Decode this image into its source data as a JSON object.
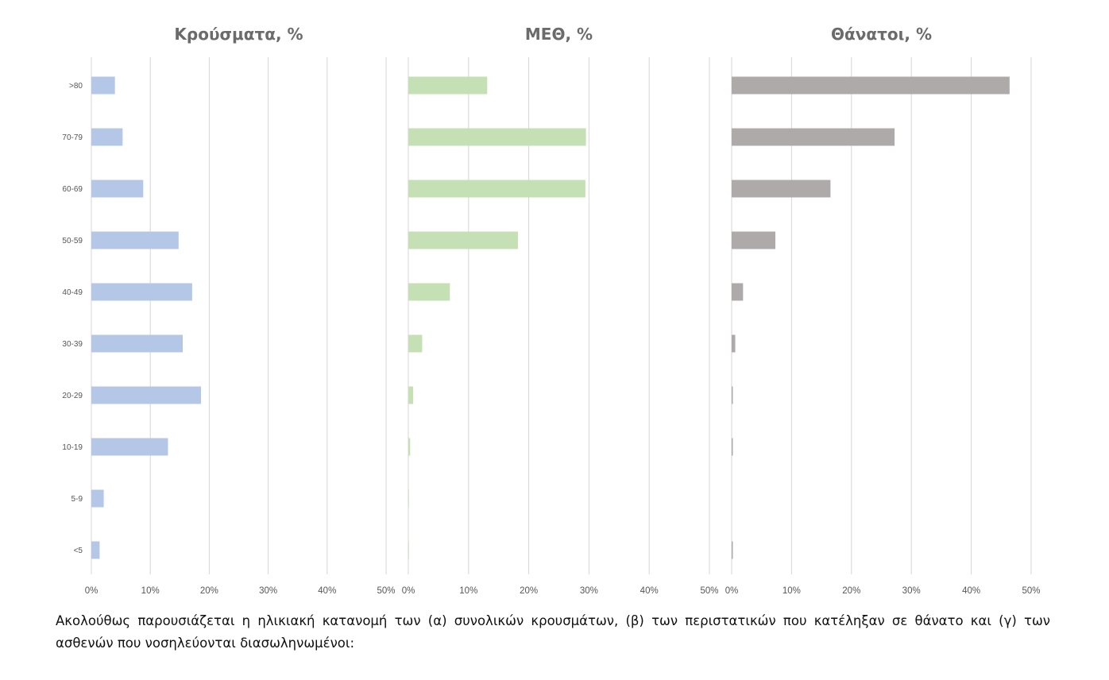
{
  "chart_data": [
    {
      "type": "bar",
      "orientation": "horizontal",
      "title": "Κρούσματα, %",
      "color": "#b4c7e7",
      "categories": [
        ">80",
        "70-79",
        "60-69",
        "50-59",
        "40-49",
        "30-39",
        "20-29",
        "10-19",
        "5-9",
        "<5"
      ],
      "values": [
        4.0,
        5.3,
        8.8,
        14.8,
        17.1,
        15.5,
        18.6,
        13.0,
        2.1,
        1.4
      ],
      "xlim": [
        0,
        50
      ],
      "xticks": [
        "0%",
        "10%",
        "20%",
        "30%",
        "40%",
        "50%"
      ],
      "grid": true
    },
    {
      "type": "bar",
      "orientation": "horizontal",
      "title": "ΜΕΘ, %",
      "color": "#c5e0b4",
      "values": [
        13.1,
        29.5,
        29.4,
        18.2,
        6.9,
        2.3,
        0.8,
        0.3,
        0.1,
        0.1
      ],
      "xlim": [
        0,
        50
      ],
      "xticks": [
        "0%",
        "10%",
        "20%",
        "30%",
        "40%",
        "50%"
      ],
      "grid": true
    },
    {
      "type": "bar",
      "orientation": "horizontal",
      "title": "Θάνατοι, %",
      "color": "#aeaaaa",
      "values": [
        46.4,
        27.2,
        16.5,
        7.3,
        1.9,
        0.6,
        0.2,
        0.2,
        0.0,
        0.2
      ],
      "xlim": [
        0,
        50
      ],
      "xticks": [
        "0%",
        "10%",
        "20%",
        "30%",
        "40%",
        "50%"
      ],
      "grid": true
    }
  ],
  "caption": "Ακολούθως παρουσιάζεται η ηλικιακή κατανομή των (α) συνολικών κρουσμάτων, (β) των περιστατικών που κατέληξαν σε θάνατο και (γ) των ασθενών που νοσηλεύονται διασωληνωμένοι:"
}
